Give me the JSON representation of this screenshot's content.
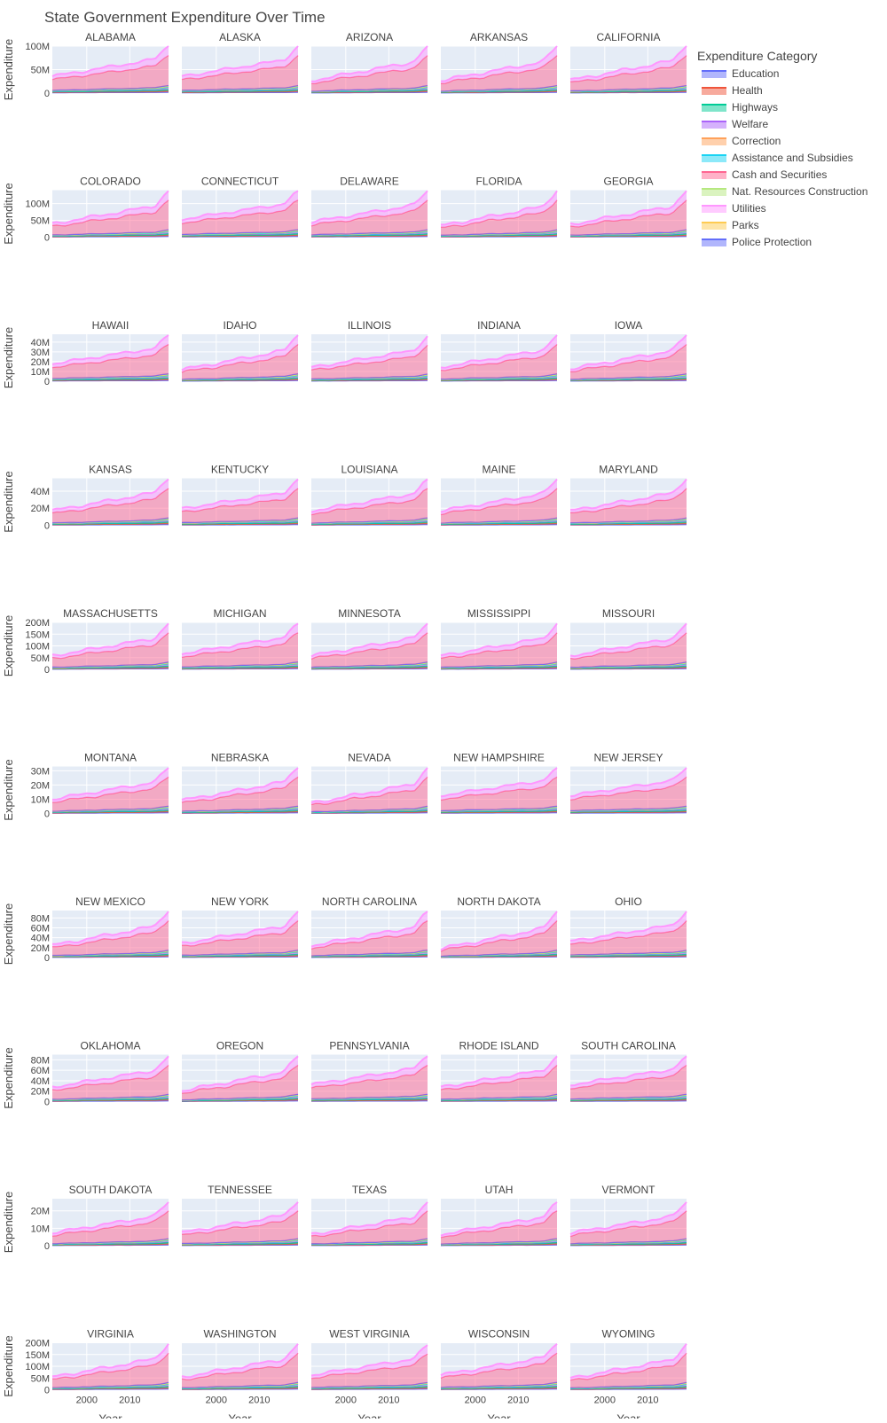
{
  "chart_data": {
    "type": "area",
    "title": "State Government Expenditure Over Time",
    "xlabel": "Year",
    "ylabel": "Expenditure",
    "x_ticks": [
      2000,
      2010
    ],
    "xlim": [
      1992,
      2019
    ],
    "stacked": true,
    "grid": true,
    "legend": {
      "title": "Expenditure Category",
      "placement": "right",
      "items": [
        {
          "name": "Education",
          "color": "#636efa"
        },
        {
          "name": "Health",
          "color": "#EF553B"
        },
        {
          "name": "Highways",
          "color": "#00cc96"
        },
        {
          "name": "Welfare",
          "color": "#ab63fa"
        },
        {
          "name": "Correction",
          "color": "#FFA15A"
        },
        {
          "name": "Assistance and Subsidies",
          "color": "#19d3f3"
        },
        {
          "name": "Cash and Securities",
          "color": "#FF6692"
        },
        {
          "name": "Nat. Resources Construction",
          "color": "#B6E880"
        },
        {
          "name": "Utilities",
          "color": "#FF97FF"
        },
        {
          "name": "Parks",
          "color": "#FECB52"
        },
        {
          "name": "Police Protection",
          "color": "#636efa"
        }
      ]
    },
    "rows": [
      {
        "ylim": [
          0,
          100000000
        ],
        "ytick_labels": [
          "0",
          "50M",
          "100M"
        ],
        "ytick_values": [
          0,
          50000000,
          100000000
        ]
      },
      {
        "ylim": [
          0,
          140000000
        ],
        "ytick_labels": [
          "0",
          "50M",
          "100M"
        ],
        "ytick_values": [
          0,
          50000000,
          100000000
        ]
      },
      {
        "ylim": [
          0,
          48000000
        ],
        "ytick_labels": [
          "0",
          "10M",
          "20M",
          "30M",
          "40M"
        ],
        "ytick_values": [
          0,
          10000000,
          20000000,
          30000000,
          40000000
        ]
      },
      {
        "ylim": [
          0,
          55000000
        ],
        "ytick_labels": [
          "0",
          "20M",
          "40M"
        ],
        "ytick_values": [
          0,
          20000000,
          40000000
        ]
      },
      {
        "ylim": [
          0,
          200000000
        ],
        "ytick_labels": [
          "0",
          "50M",
          "100M",
          "150M",
          "200M"
        ],
        "ytick_values": [
          0,
          50000000,
          100000000,
          150000000,
          200000000
        ]
      },
      {
        "ylim": [
          0,
          33000000
        ],
        "ytick_labels": [
          "0",
          "10M",
          "20M",
          "30M"
        ],
        "ytick_values": [
          0,
          10000000,
          20000000,
          30000000
        ]
      },
      {
        "ylim": [
          0,
          95000000
        ],
        "ytick_labels": [
          "0",
          "20M",
          "40M",
          "60M",
          "80M"
        ],
        "ytick_values": [
          0,
          20000000,
          40000000,
          60000000,
          80000000
        ]
      },
      {
        "ylim": [
          0,
          90000000
        ],
        "ytick_labels": [
          "0",
          "20M",
          "40M",
          "60M",
          "80M"
        ],
        "ytick_values": [
          0,
          20000000,
          40000000,
          60000000,
          80000000
        ]
      },
      {
        "ylim": [
          0,
          27000000
        ],
        "ytick_labels": [
          "0",
          "10M",
          "20M"
        ],
        "ytick_values": [
          0,
          10000000,
          20000000
        ]
      },
      {
        "ylim": [
          0,
          200000000
        ],
        "ytick_labels": [
          "0",
          "50M",
          "100M",
          "150M",
          "200M"
        ],
        "ytick_values": [
          0,
          50000000,
          100000000,
          150000000,
          200000000
        ]
      }
    ],
    "states": [
      {
        "name": "ALABAMA",
        "start_total": 27000000,
        "end_total": 100000000
      },
      {
        "name": "ALASKA",
        "start_total": 27000000,
        "end_total": 100000000
      },
      {
        "name": "ARIZONA",
        "start_total": 17000000,
        "end_total": 100000000
      },
      {
        "name": "ARKANSAS",
        "start_total": 17000000,
        "end_total": 100000000
      },
      {
        "name": "CALIFORNIA",
        "start_total": 17000000,
        "end_total": 100000000
      },
      {
        "name": "COLORADO",
        "start_total": 27000000,
        "end_total": 138000000
      },
      {
        "name": "CONNECTICUT",
        "start_total": 42000000,
        "end_total": 138000000
      },
      {
        "name": "DELAWARE",
        "start_total": 33000000,
        "end_total": 138000000
      },
      {
        "name": "FLORIDA",
        "start_total": 20000000,
        "end_total": 138000000
      },
      {
        "name": "GEORGIA",
        "start_total": 25000000,
        "end_total": 138000000
      },
      {
        "name": "HAWAII",
        "start_total": 14000000,
        "end_total": 47000000
      },
      {
        "name": "IDAHO",
        "start_total": 7000000,
        "end_total": 47000000
      },
      {
        "name": "ILLINOIS",
        "start_total": 10000000,
        "end_total": 46000000
      },
      {
        "name": "INDIANA",
        "start_total": 10000000,
        "end_total": 47000000
      },
      {
        "name": "IOWA",
        "start_total": 8000000,
        "end_total": 47000000
      },
      {
        "name": "KANSAS",
        "start_total": 12000000,
        "end_total": 54000000
      },
      {
        "name": "KENTUCKY",
        "start_total": 15000000,
        "end_total": 54000000
      },
      {
        "name": "LOUISIANA",
        "start_total": 12000000,
        "end_total": 54000000
      },
      {
        "name": "MAINE",
        "start_total": 12000000,
        "end_total": 54000000
      },
      {
        "name": "MARYLAND",
        "start_total": 12000000,
        "end_total": 54000000
      },
      {
        "name": "MASSACHUSETTS",
        "start_total": 40000000,
        "end_total": 195000000
      },
      {
        "name": "MICHIGAN",
        "start_total": 50000000,
        "end_total": 195000000
      },
      {
        "name": "MINNESOTA",
        "start_total": 40000000,
        "end_total": 195000000
      },
      {
        "name": "MISSISSIPPI",
        "start_total": 40000000,
        "end_total": 195000000
      },
      {
        "name": "MISSOURI",
        "start_total": 40000000,
        "end_total": 195000000
      },
      {
        "name": "MONTANA",
        "start_total": 7000000,
        "end_total": 32000000
      },
      {
        "name": "NEBRASKA",
        "start_total": 6000000,
        "end_total": 32000000
      },
      {
        "name": "NEVADA",
        "start_total": 4000000,
        "end_total": 32000000
      },
      {
        "name": "NEW HAMPSHIRE",
        "start_total": 10000000,
        "end_total": 32000000
      },
      {
        "name": "NEW JERSEY",
        "start_total": 10000000,
        "end_total": 32000000
      },
      {
        "name": "NEW MEXICO",
        "start_total": 15000000,
        "end_total": 93000000
      },
      {
        "name": "NEW YORK",
        "start_total": 20000000,
        "end_total": 93000000
      },
      {
        "name": "NORTH CAROLINA",
        "start_total": 15000000,
        "end_total": 93000000
      },
      {
        "name": "NORTH DAKOTA",
        "start_total": 8000000,
        "end_total": 93000000
      },
      {
        "name": "OHIO",
        "start_total": 25000000,
        "end_total": 93000000
      },
      {
        "name": "OKLAHOMA",
        "start_total": 20000000,
        "end_total": 87000000
      },
      {
        "name": "OREGON",
        "start_total": 12000000,
        "end_total": 87000000
      },
      {
        "name": "PENNSYLVANIA",
        "start_total": 25000000,
        "end_total": 87000000
      },
      {
        "name": "RHODE ISLAND",
        "start_total": 20000000,
        "end_total": 87000000
      },
      {
        "name": "SOUTH CAROLINA",
        "start_total": 25000000,
        "end_total": 87000000
      },
      {
        "name": "SOUTH DAKOTA",
        "start_total": 5000000,
        "end_total": 25000000
      },
      {
        "name": "TENNESSEE",
        "start_total": 5000000,
        "end_total": 25000000
      },
      {
        "name": "TEXAS",
        "start_total": 4000000,
        "end_total": 25000000
      },
      {
        "name": "UTAH",
        "start_total": 4000000,
        "end_total": 25000000
      },
      {
        "name": "VERMONT",
        "start_total": 5000000,
        "end_total": 25000000
      },
      {
        "name": "VIRGINIA",
        "start_total": 35000000,
        "end_total": 195000000
      },
      {
        "name": "WASHINGTON",
        "start_total": 35000000,
        "end_total": 195000000
      },
      {
        "name": "WEST VIRGINIA",
        "start_total": 45000000,
        "end_total": 190000000
      },
      {
        "name": "WISCONSIN",
        "start_total": 45000000,
        "end_total": 195000000
      },
      {
        "name": "WYOMING",
        "start_total": 30000000,
        "end_total": 195000000
      }
    ],
    "category_shares": {
      "Education": 0.02,
      "Health": 0.025,
      "Highways": 0.03,
      "Welfare": 0.04,
      "Correction": 0.005,
      "Assistance and Subsidies": 0.005,
      "Cash and Securities": 0.64,
      "Nat. Resources Construction": 0.015,
      "Utilities": 0.2,
      "Parks": 0.01,
      "Police Protection": 0.01
    }
  }
}
